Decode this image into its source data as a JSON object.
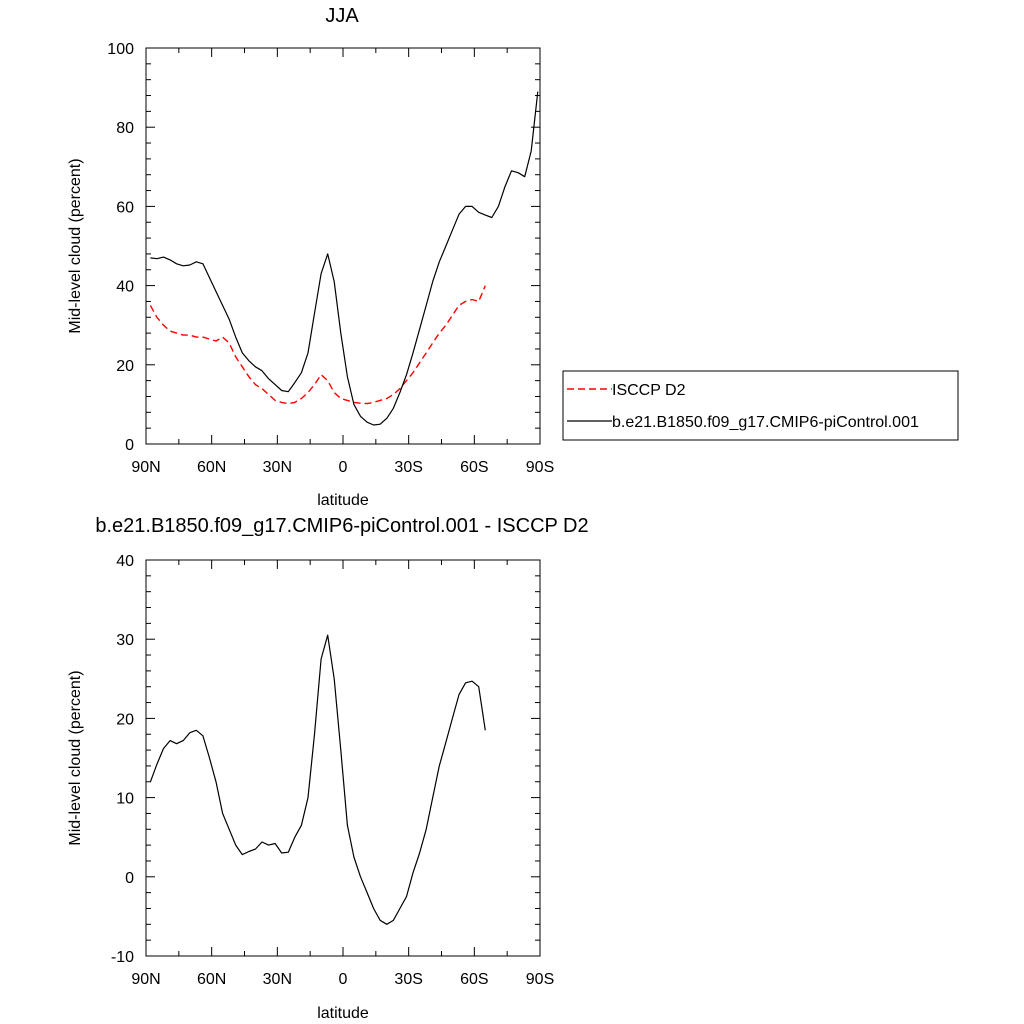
{
  "chart_data": [
    {
      "type": "line",
      "title": "JJA",
      "xlabel": "latitude",
      "ylabel": "Mid-level cloud (percent)",
      "xlim": [
        90,
        -90
      ],
      "ylim": [
        0,
        100
      ],
      "x_ticks": [
        90,
        60,
        30,
        0,
        -30,
        -60,
        -90
      ],
      "x_tick_labels": [
        "90N",
        "60N",
        "30N",
        "0",
        "30S",
        "60S",
        "90S"
      ],
      "y_ticks": [
        0,
        20,
        40,
        60,
        80,
        100
      ],
      "y_tick_labels": [
        "0",
        "20",
        "40",
        "60",
        "80",
        "100"
      ],
      "grid": false,
      "legend": "right",
      "series": [
        {
          "name": "ISCCP D2",
          "color": "#ff0000",
          "dash": "dashed",
          "x": [
            88,
            85,
            82,
            79,
            76,
            73,
            70,
            67,
            64,
            61,
            58,
            55,
            52,
            49,
            46,
            43,
            40,
            37,
            34,
            31,
            28,
            25,
            22,
            19,
            16,
            13,
            10,
            7,
            4,
            1,
            -2,
            -5,
            -8,
            -11,
            -14,
            -17,
            -20,
            -23,
            -26,
            -29,
            -32,
            -35,
            -38,
            -41,
            -44,
            -47,
            -50,
            -53,
            -56,
            -59,
            -62,
            -65
          ],
          "y": [
            35,
            32,
            30,
            28.5,
            28,
            27.5,
            27.5,
            27,
            27,
            26.5,
            26,
            27,
            25.5,
            22,
            19.5,
            17,
            15,
            14,
            12.5,
            11,
            10.5,
            10.2,
            10.5,
            11.5,
            13,
            15,
            17.5,
            16,
            13,
            11.5,
            11,
            10.5,
            10.3,
            10.2,
            10.5,
            11,
            11.5,
            12.5,
            14,
            16,
            18,
            20.5,
            23,
            25.5,
            28,
            30,
            32.5,
            35,
            36,
            36.5,
            36,
            40
          ]
        },
        {
          "name": "b.e21.B1850.f09_g17.CMIP6-piControl.001",
          "color": "#000000",
          "dash": "solid",
          "x": [
            88,
            85,
            82,
            79,
            76,
            73,
            70,
            67,
            64,
            61,
            58,
            55,
            52,
            49,
            46,
            43,
            40,
            37,
            34,
            31,
            28,
            25,
            22,
            19,
            16,
            13,
            10,
            7,
            4,
            1,
            -2,
            -5,
            -8,
            -11,
            -14,
            -17,
            -20,
            -23,
            -26,
            -29,
            -32,
            -35,
            -38,
            -41,
            -44,
            -47,
            -50,
            -53,
            -56,
            -59,
            -62,
            -65,
            -68,
            -71,
            -74,
            -77,
            -80,
            -83,
            -86,
            -89
          ],
          "y": [
            47,
            46.8,
            47.2,
            46.5,
            45.5,
            45,
            45.2,
            46,
            45.5,
            42,
            38.5,
            35,
            31.5,
            27,
            23,
            21,
            19.5,
            18.5,
            16.5,
            15,
            13.5,
            13.2,
            15.5,
            18,
            23,
            33,
            43,
            48,
            41,
            28,
            17,
            10,
            7,
            5.5,
            4.8,
            5,
            6.5,
            9,
            13,
            17.5,
            23,
            29,
            35,
            41,
            46,
            50,
            54,
            58,
            60,
            60,
            58.5,
            57.8,
            57.2,
            60,
            65,
            69,
            68.5,
            67.5,
            74,
            89
          ]
        }
      ]
    },
    {
      "type": "line",
      "title": "b.e21.B1850.f09_g17.CMIP6-piControl.001 - ISCCP D2",
      "xlabel": "latitude",
      "ylabel": "Mid-level cloud (percent)",
      "xlim": [
        90,
        -90
      ],
      "ylim": [
        -10,
        40
      ],
      "x_ticks": [
        90,
        60,
        30,
        0,
        -30,
        -60,
        -90
      ],
      "x_tick_labels": [
        "90N",
        "60N",
        "30N",
        "0",
        "30S",
        "60S",
        "90S"
      ],
      "y_ticks": [
        -10,
        0,
        10,
        20,
        30,
        40
      ],
      "y_tick_labels": [
        "-10",
        "0",
        "10",
        "20",
        "30",
        "40"
      ],
      "grid": false,
      "series": [
        {
          "color": "#000000",
          "dash": "solid",
          "x": [
            88,
            85,
            82,
            79,
            76,
            73,
            70,
            67,
            64,
            61,
            58,
            55,
            52,
            49,
            46,
            43,
            40,
            37,
            34,
            31,
            28,
            25,
            22,
            19,
            16,
            13,
            10,
            7,
            4,
            1,
            -2,
            -5,
            -8,
            -11,
            -14,
            -17,
            -20,
            -23,
            -26,
            -29,
            -32,
            -35,
            -38,
            -41,
            -44,
            -47,
            -50,
            -53,
            -56,
            -59,
            -62,
            -65
          ],
          "y": [
            12,
            14.2,
            16.2,
            17.2,
            16.8,
            17.2,
            18.2,
            18.5,
            17.8,
            15,
            12,
            8,
            6,
            4,
            2.8,
            3.2,
            3.5,
            4.4,
            4,
            4.2,
            3,
            3.1,
            5,
            6.5,
            10,
            18,
            27.5,
            30.5,
            25,
            16,
            6.5,
            2.5,
            0,
            -2,
            -4,
            -5.5,
            -6,
            -5.5,
            -4,
            -2.5,
            0.5,
            3,
            6,
            10,
            14,
            17,
            20,
            23,
            24.5,
            24.7,
            24,
            18.5
          ]
        }
      ]
    }
  ]
}
